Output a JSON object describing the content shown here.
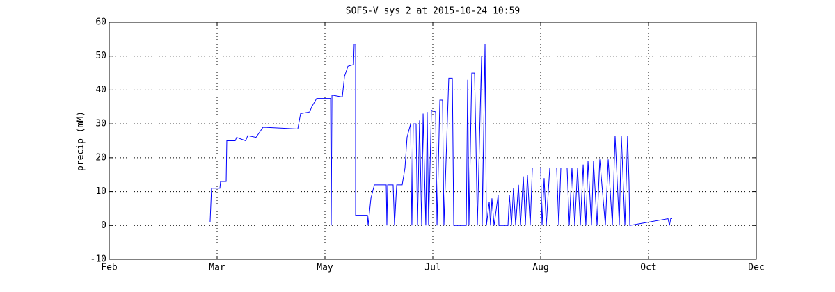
{
  "chart_data": {
    "type": "line",
    "title": "SOFS-V sys 2 at 2015-10-24 10:59",
    "y_label": "precip (mM)",
    "color": "#0000ff",
    "grid": true,
    "xlim": [
      0,
      6
    ],
    "xticks": [
      {
        "value": 0,
        "label": "Feb"
      },
      {
        "value": 1,
        "label": "Mar"
      },
      {
        "value": 2,
        "label": "May"
      },
      {
        "value": 3,
        "label": "Jul"
      },
      {
        "value": 4,
        "label": "Aug"
      },
      {
        "value": 5,
        "label": "Oct"
      },
      {
        "value": 6,
        "label": "Dec"
      }
    ],
    "ylim": [
      -10,
      60
    ],
    "yticks": [
      -10,
      0,
      10,
      20,
      30,
      40,
      50,
      60
    ],
    "x": [
      0.935,
      0.948,
      1.026,
      1.032,
      1.084,
      1.09,
      1.168,
      1.181,
      1.265,
      1.284,
      1.361,
      1.426,
      1.748,
      1.774,
      1.858,
      1.877,
      1.923,
      2.052,
      2.058,
      2.065,
      2.148,
      2.161,
      2.181,
      2.213,
      2.265,
      2.271,
      2.284,
      2.284,
      2.394,
      2.4,
      2.426,
      2.458,
      2.568,
      2.574,
      2.581,
      2.632,
      2.645,
      2.665,
      2.716,
      2.742,
      2.761,
      2.794,
      2.806,
      2.819,
      2.845,
      2.858,
      2.877,
      2.897,
      2.91,
      2.935,
      2.948,
      2.961,
      2.987,
      3.026,
      3.039,
      3.065,
      3.09,
      3.103,
      3.148,
      3.181,
      3.194,
      3.31,
      3.323,
      3.335,
      3.361,
      3.387,
      3.4,
      3.413,
      3.452,
      3.458,
      3.484,
      3.497,
      3.523,
      3.535,
      3.548,
      3.568,
      3.606,
      3.613,
      3.697,
      3.71,
      3.729,
      3.748,
      3.768,
      3.794,
      3.813,
      3.839,
      3.858,
      3.877,
      3.903,
      3.923,
      4.0,
      4.013,
      4.032,
      4.052,
      4.084,
      4.148,
      4.168,
      4.187,
      4.245,
      4.265,
      4.29,
      4.316,
      4.342,
      4.368,
      4.394,
      4.419,
      4.439,
      4.471,
      4.49,
      4.523,
      4.548,
      4.6,
      4.626,
      4.665,
      4.69,
      4.729,
      4.748,
      4.781,
      4.806,
      4.819,
      4.826,
      5.181,
      5.194,
      5.206,
      5.219
    ],
    "values": [
      1,
      11,
      11,
      13,
      13,
      25,
      25,
      26,
      25,
      26.5,
      26,
      29,
      28.5,
      33,
      33.5,
      35,
      37.5,
      37.5,
      0,
      38.5,
      38,
      38,
      44,
      47,
      47.5,
      53.5,
      53.5,
      3,
      3,
      0,
      8,
      12,
      12,
      0,
      12,
      12,
      0,
      12,
      12,
      17,
      26,
      30,
      0,
      30,
      30,
      0,
      31,
      0,
      33,
      0,
      33.5,
      0,
      34,
      33.5,
      0,
      37,
      37,
      0,
      43.5,
      43.5,
      0,
      0,
      43,
      0,
      45,
      45,
      24,
      0,
      50,
      0,
      53.5,
      0,
      7,
      0,
      8,
      0,
      9,
      0,
      0,
      9,
      0,
      11,
      0,
      12,
      0,
      14.5,
      0,
      15,
      0,
      17,
      17,
      0,
      14,
      0,
      17,
      17,
      0,
      17,
      17,
      0,
      17,
      0,
      17,
      0,
      18,
      0,
      19,
      0,
      19,
      0,
      19.5,
      0,
      19.5,
      0,
      26.5,
      0,
      26.5,
      0,
      26.5,
      13,
      0,
      2,
      0,
      2,
      2
    ]
  }
}
